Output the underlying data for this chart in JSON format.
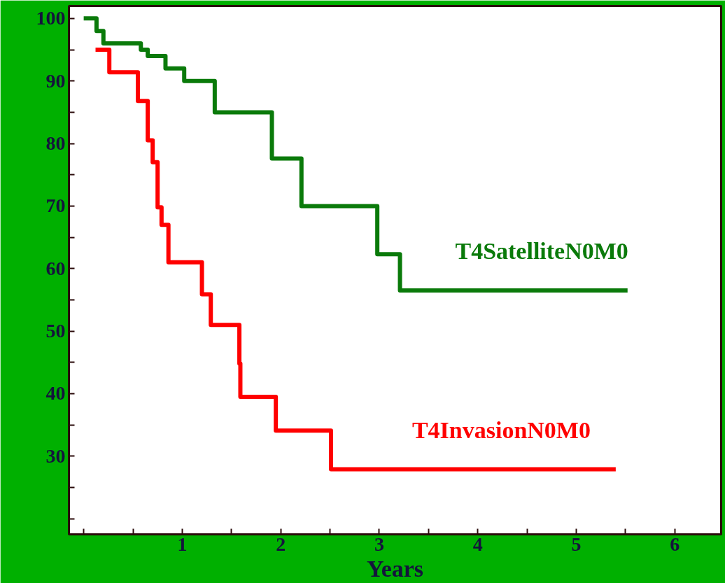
{
  "chart_data": {
    "type": "step",
    "xlabel": "Years",
    "xlim": [
      -0.15,
      6.47
    ],
    "ylim": [
      17.5,
      102
    ],
    "xticks": [
      {
        "value": 0,
        "label": null
      },
      {
        "value": 0.5,
        "label": null
      },
      1,
      {
        "value": 1.5,
        "label": null
      },
      2,
      {
        "value": 2.5,
        "label": null
      },
      3,
      {
        "value": 3.5,
        "label": null
      },
      4,
      {
        "value": 4.5,
        "label": null
      },
      5,
      {
        "value": 5.5,
        "label": null
      },
      6
    ],
    "yticks": [
      {
        "value": 20,
        "label": null
      },
      {
        "value": 25,
        "label": null
      },
      30,
      {
        "value": 35,
        "label": null
      },
      40,
      {
        "value": 45,
        "label": null
      },
      50,
      {
        "value": 55,
        "label": null
      },
      60,
      {
        "value": 65,
        "label": null
      },
      70,
      {
        "value": 75,
        "label": null
      },
      80,
      {
        "value": 85,
        "label": null
      },
      90,
      {
        "value": 95,
        "label": null
      },
      100
    ],
    "grid": false,
    "legend": false,
    "marker": "none",
    "line_style": "solid",
    "series": [
      {
        "name": "T4SatelliteN0M0",
        "color": "#0a7a0a",
        "x": [
          0,
          0.13,
          0.2,
          0.58,
          0.65,
          0.83,
          1.02,
          1.33,
          1.91,
          2.21,
          2.98,
          3.21,
          5.52
        ],
        "values": [
          100,
          98,
          96,
          95,
          94,
          92,
          90,
          85,
          77.6,
          70,
          62.3,
          56.5,
          56.5
        ]
      },
      {
        "name": "T4InvasionN0M0",
        "color": "#ff0000",
        "x": [
          0.12,
          0.26,
          0.55,
          0.65,
          0.7,
          0.75,
          0.79,
          0.86,
          1.2,
          1.29,
          1.58,
          1.59,
          1.95,
          2.51,
          5.4
        ],
        "values": [
          95,
          91.4,
          86.8,
          80.5,
          77,
          69.8,
          67,
          61,
          55.9,
          51,
          44.8,
          39.5,
          34.1,
          27.9,
          27.9
        ]
      }
    ]
  }
}
